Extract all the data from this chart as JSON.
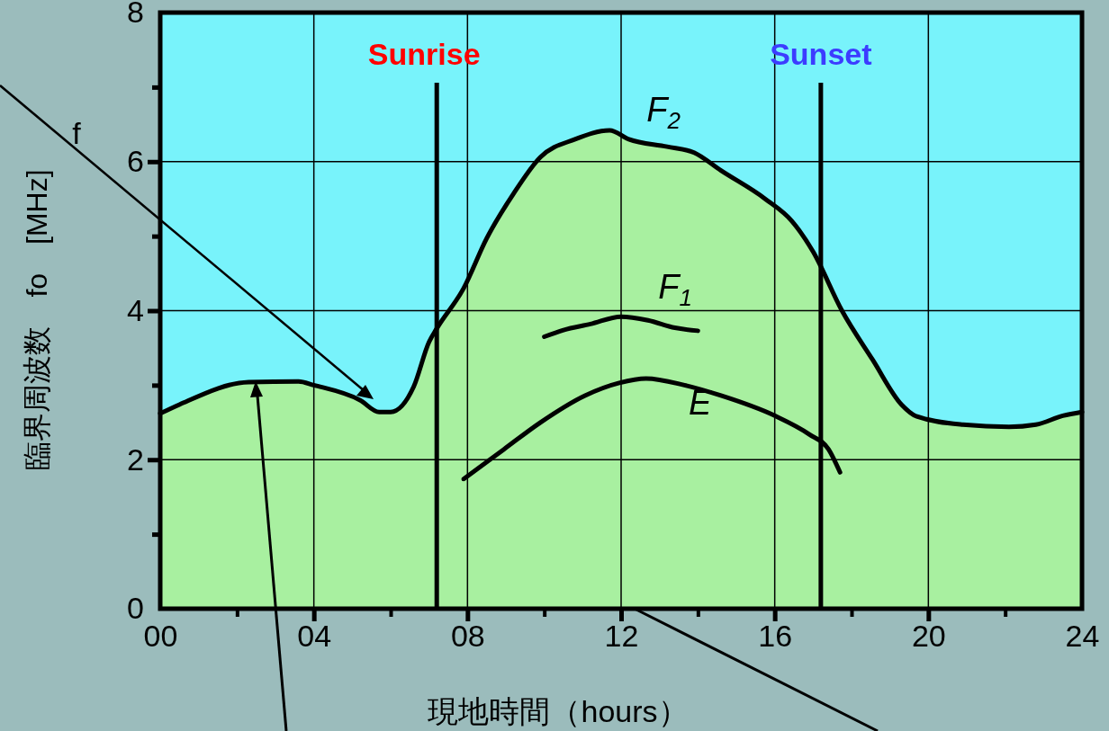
{
  "chart_data": {
    "type": "line",
    "xlabel": "現地時間（hours）",
    "ylabel": "臨界周波数　fo　[MHz]",
    "xlim": [
      0,
      24
    ],
    "ylim": [
      0,
      8
    ],
    "xticks": [
      {
        "value": 0,
        "label": "00"
      },
      {
        "value": 2,
        "label": null
      },
      {
        "value": 4,
        "label": "04"
      },
      {
        "value": 6,
        "label": null
      },
      {
        "value": 8,
        "label": "08"
      },
      {
        "value": 10,
        "label": null
      },
      12,
      {
        "value": 14,
        "label": null
      },
      16,
      {
        "value": 18,
        "label": null
      },
      20,
      {
        "value": 22,
        "label": null
      },
      24
    ],
    "yticks": [
      0,
      {
        "value": 1,
        "label": null
      },
      2,
      {
        "value": 3,
        "label": null
      },
      4,
      {
        "value": 5,
        "label": null
      },
      6,
      {
        "value": 7,
        "label": null
      },
      8
    ],
    "grid": true,
    "legend": false,
    "marker": "none",
    "line_style": "solid",
    "series": [
      {
        "name": "F$_{2}$",
        "type": "area",
        "color": "#a8f0a0",
        "x": [
          0,
          0.5,
          2.3,
          3.6,
          4.0,
          5.2,
          5.7,
          6.0,
          6.6,
          7.0,
          7.2,
          7.9,
          8.5,
          9.2,
          9.9,
          10.8,
          11.7,
          12.2,
          13.2,
          13.9,
          14.6,
          15.75,
          16.45,
          17.0,
          17.75,
          18.55,
          19.3,
          19.7,
          20.9,
          22.1,
          22.8,
          23.5,
          24
        ],
        "values": [
          2.62,
          2.74,
          3.04,
          3.05,
          3.0,
          2.8,
          2.64,
          2.64,
          2.98,
          3.58,
          3.76,
          4.3,
          4.97,
          5.57,
          6.06,
          6.3,
          6.42,
          6.3,
          6.2,
          6.12,
          5.88,
          5.5,
          5.2,
          4.79,
          4.0,
          3.34,
          2.74,
          2.58,
          2.47,
          2.44,
          2.47,
          2.59,
          2.64
        ]
      },
      {
        "name": "F$_{1}$",
        "color": "#000000",
        "x": [
          10.0,
          10.5,
          11.2,
          12.0,
          12.7,
          13.4,
          14.0
        ],
        "values": [
          3.65,
          3.74,
          3.82,
          3.92,
          3.87,
          3.77,
          3.73
        ]
      },
      {
        "name": "E",
        "color": "#000000",
        "x": [
          7.9,
          8.95,
          9.9,
          11.06,
          11.95,
          12.65,
          13.65,
          14.6,
          16.0,
          16.9,
          17.4,
          17.7
        ],
        "values": [
          1.74,
          2.14,
          2.5,
          2.86,
          3.03,
          3.09,
          3.0,
          2.86,
          2.59,
          2.34,
          2.14,
          1.83
        ]
      }
    ],
    "ref_lines": [
      {
        "axis": "x",
        "value": 7.2,
        "label": "Sunrise"
      },
      {
        "axis": "x",
        "value": 17.2,
        "label": "Sunset"
      }
    ],
    "bands": [
      {
        "axis": "y",
        "from": 0,
        "to": 8,
        "color": "#78f3fb"
      }
    ],
    "annotations": [
      "f"
    ]
  }
}
